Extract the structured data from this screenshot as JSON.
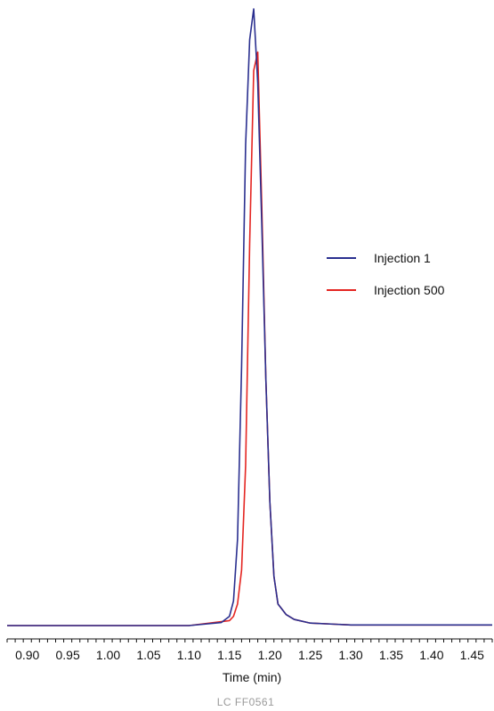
{
  "chart_data": {
    "type": "line",
    "xlabel": "Time (min)",
    "ylabel": "",
    "xlim": [
      0.875,
      1.475
    ],
    "ylim": [
      0,
      100
    ],
    "x_ticks": [
      "0.90",
      "0.95",
      "1.00",
      "1.05",
      "1.10",
      "1.15",
      "1.20",
      "1.25",
      "1.30",
      "1.35",
      "1.40",
      "1.45"
    ],
    "x_tick_values": [
      0.9,
      0.95,
      1.0,
      1.05,
      1.1,
      1.15,
      1.2,
      1.25,
      1.3,
      1.35,
      1.4,
      1.45
    ],
    "legend_position": "right",
    "grid": false,
    "series": [
      {
        "name": "Injection 1",
        "color": "#2a2f8f",
        "x": [
          0.875,
          1.1,
          1.14,
          1.15,
          1.155,
          1.16,
          1.165,
          1.17,
          1.175,
          1.18,
          1.185,
          1.19,
          1.195,
          1.2,
          1.205,
          1.21,
          1.22,
          1.23,
          1.25,
          1.3,
          1.475
        ],
        "y": [
          0.0,
          0.0,
          0.5,
          1.5,
          4.0,
          14.0,
          42.0,
          78.0,
          95.0,
          100.0,
          88.0,
          65.0,
          40.0,
          20.0,
          8.0,
          3.5,
          1.8,
          1.0,
          0.4,
          0.1,
          0.1
        ]
      },
      {
        "name": "Injection 500",
        "color": "#e42521",
        "x": [
          0.875,
          1.1,
          1.15,
          1.155,
          1.16,
          1.165,
          1.17,
          1.175,
          1.18,
          1.185,
          1.19,
          1.195,
          1.2,
          1.205,
          1.21,
          1.22,
          1.23,
          1.25,
          1.3,
          1.475
        ],
        "y": [
          0.0,
          0.0,
          0.8,
          1.5,
          3.5,
          9.0,
          26.0,
          62.0,
          90.0,
          93.0,
          68.0,
          40.0,
          20.0,
          8.0,
          3.5,
          1.8,
          1.0,
          0.4,
          0.1,
          0.1
        ]
      }
    ]
  },
  "footnote": "LC  FF0561"
}
